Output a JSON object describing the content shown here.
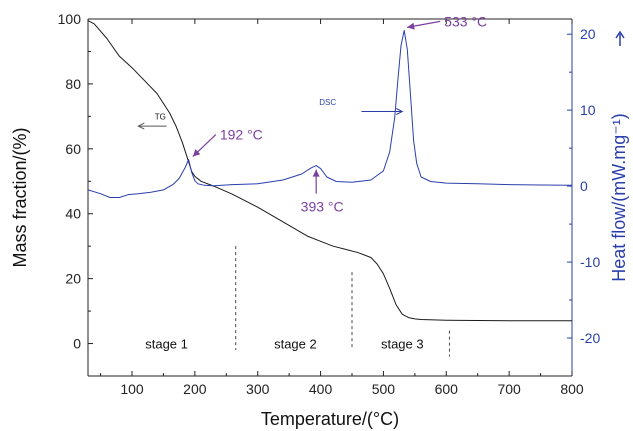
{
  "chart_data": {
    "type": "line",
    "xlabel": "Temperature/(°C)",
    "ylabel_left": "Mass fraction/(%)",
    "ylabel_right": "Heat flow/(mW.mg⁻¹)",
    "xlim": [
      30,
      800
    ],
    "ylim_left": [
      -10,
      100
    ],
    "ylim_right": [
      -25,
      22
    ],
    "x_ticks": [
      100,
      200,
      300,
      400,
      500,
      600,
      700,
      800
    ],
    "y_ticks_left": [
      0,
      20,
      40,
      60,
      80,
      100
    ],
    "y_ticks_right": [
      -20,
      -10,
      0,
      10,
      20
    ],
    "grid": false,
    "colors": {
      "tg": "#1a1a1a",
      "dsc": "#2a3faa",
      "annotation": "#7b3fa0",
      "right_axis": "#2a3faa"
    },
    "series": [
      {
        "name": "TG",
        "axis": "left",
        "x": [
          30,
          40,
          60,
          80,
          100,
          120,
          140,
          160,
          170,
          180,
          190,
          195,
          200,
          210,
          230,
          260,
          300,
          340,
          380,
          400,
          420,
          440,
          460,
          480,
          490,
          500,
          510,
          520,
          530,
          540,
          550,
          560,
          580,
          600,
          650,
          700,
          750,
          800
        ],
        "y": [
          99.5,
          98.5,
          94,
          88.5,
          85,
          81,
          77,
          71,
          67,
          62,
          56,
          53,
          51.5,
          50,
          48.5,
          46,
          42,
          37.5,
          33,
          31.5,
          30,
          29,
          28,
          26.5,
          24.5,
          21.5,
          17,
          12,
          9,
          8,
          7.6,
          7.4,
          7.3,
          7.2,
          7.1,
          7.0,
          7.0,
          7.0
        ]
      },
      {
        "name": "DSC",
        "axis": "right",
        "x": [
          30,
          50,
          65,
          80,
          95,
          110,
          130,
          150,
          165,
          175,
          185,
          190,
          195,
          200,
          205,
          215,
          230,
          260,
          300,
          340,
          370,
          385,
          393,
          400,
          410,
          425,
          450,
          480,
          500,
          510,
          518,
          523,
          528,
          533,
          538,
          543,
          548,
          553,
          560,
          575,
          600,
          650,
          700,
          750,
          800
        ],
        "y": [
          -0.5,
          -1.0,
          -1.5,
          -1.5,
          -1.1,
          -1.0,
          -0.8,
          -0.5,
          0.2,
          1.0,
          2.5,
          3.5,
          1.8,
          0.7,
          0.3,
          0.1,
          0.05,
          0.2,
          0.3,
          0.8,
          1.6,
          2.4,
          2.7,
          2.3,
          1.2,
          0.6,
          0.5,
          0.8,
          2.0,
          4.5,
          9.0,
          14.0,
          18.5,
          20.5,
          18.0,
          12.0,
          6.0,
          3.0,
          1.2,
          0.6,
          0.4,
          0.3,
          0.2,
          0.15,
          0.1
        ]
      }
    ],
    "series_labels": {
      "tg": "TG",
      "dsc": "DSC"
    },
    "annotations": [
      {
        "text": "192 °C",
        "x": 192,
        "y_right": 3.5,
        "dx": 30,
        "dy": -20,
        "arrow": "to-point"
      },
      {
        "text": "393 °C",
        "x": 393,
        "y_right": 2.7,
        "dx": 0,
        "dy": 32,
        "arrow": "up"
      },
      {
        "text": "533 °C",
        "x": 533,
        "y_right": 20.5,
        "dx": 40,
        "dy": -4,
        "arrow": "to-point"
      }
    ],
    "stage_dividers": [
      {
        "x": 265,
        "y_top": 30,
        "y_bottom": -2
      },
      {
        "x": 450,
        "y_top": 22,
        "y_bottom": -2
      },
      {
        "x": 605,
        "y_top": 4,
        "y_bottom": -4
      }
    ],
    "stages": [
      {
        "label": "stage 1",
        "x": 155,
        "y": 0
      },
      {
        "label": "stage 2",
        "x": 360,
        "y": 0
      },
      {
        "label": "stage 3",
        "x": 530,
        "y": 0
      }
    ]
  }
}
